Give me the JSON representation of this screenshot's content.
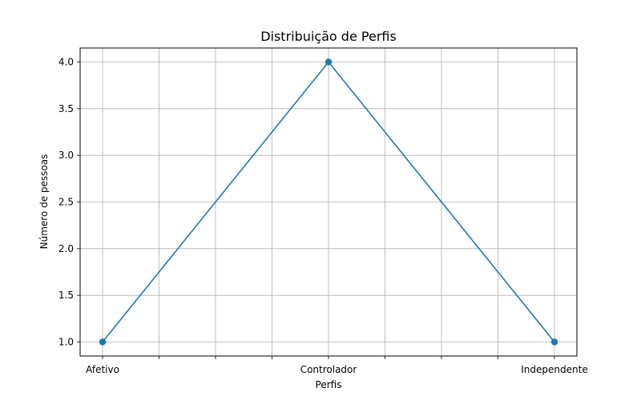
{
  "chart_data": {
    "type": "line",
    "title": "Distribuição de Perfis",
    "xlabel": "Perfis",
    "ylabel": "Número de pessoas",
    "categories": [
      "Afetivo",
      "Controlador",
      "Independente"
    ],
    "series": [
      {
        "values": [
          1,
          4,
          1
        ]
      }
    ],
    "ylim": [
      0.85,
      4.15
    ],
    "yticks": [
      "1.0",
      "1.5",
      "2.0",
      "2.5",
      "3.0",
      "3.5",
      "4.0"
    ],
    "grid": true,
    "colors": {
      "line": "#1f77b4",
      "grid": "#b0b0b0",
      "axis": "#000000"
    }
  }
}
